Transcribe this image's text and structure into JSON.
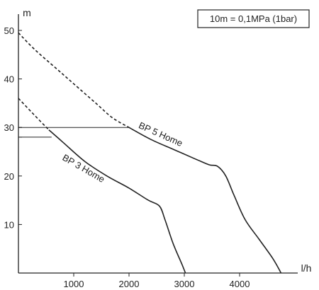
{
  "chart_data": {
    "type": "line",
    "title": "",
    "xlabel": "l/h",
    "ylabel": "m",
    "xlim": [
      0,
      5000
    ],
    "ylim": [
      0,
      50
    ],
    "xticks": [
      1000,
      2000,
      3000,
      4000
    ],
    "xtick_labels": [
      "1000",
      "2000",
      "3000",
      "4000"
    ],
    "yticks": [
      10,
      20,
      30,
      40,
      50
    ],
    "ytick_labels": [
      "10",
      "20",
      "30",
      "40",
      "50"
    ],
    "grid": false,
    "legend": "none",
    "annotation": "10m = 0,1MPa (1bar)",
    "line_color": "#222222",
    "series": [
      {
        "name": "BP 5 Home",
        "label_at": [
          2550,
          28
        ],
        "label_angle": 24,
        "dashed_points": [
          [
            0,
            49.5
          ],
          [
            300,
            46
          ],
          [
            700,
            42
          ],
          [
            1000,
            39
          ],
          [
            1400,
            35
          ],
          [
            1700,
            32
          ],
          [
            2000,
            30
          ]
        ],
        "solid_points": [
          [
            2000,
            30
          ],
          [
            2400,
            27.5
          ],
          [
            2800,
            25.5
          ],
          [
            3200,
            23.5
          ],
          [
            3450,
            22.3
          ],
          [
            3600,
            22
          ],
          [
            3750,
            20
          ],
          [
            3900,
            16
          ],
          [
            4100,
            11
          ],
          [
            4350,
            7
          ],
          [
            4600,
            3
          ],
          [
            4750,
            0
          ]
        ]
      },
      {
        "name": "BP 3 Home",
        "label_at": [
          1150,
          21
        ],
        "label_angle": 30,
        "dashed_points": [
          [
            0,
            36
          ],
          [
            250,
            33
          ],
          [
            550,
            29.5
          ]
        ],
        "solid_points": [
          [
            550,
            29.5
          ],
          [
            800,
            27
          ],
          [
            1200,
            23
          ],
          [
            1600,
            20
          ],
          [
            2000,
            17.5
          ],
          [
            2350,
            15
          ],
          [
            2550,
            13.8
          ],
          [
            2650,
            11
          ],
          [
            2800,
            6
          ],
          [
            2950,
            2
          ],
          [
            3020,
            0
          ]
        ]
      }
    ],
    "reference_lines": [
      {
        "from": [
          0,
          30
        ],
        "to": [
          2000,
          30
        ]
      },
      {
        "from": [
          0,
          28
        ],
        "to": [
          600,
          28
        ]
      }
    ],
    "reference_ticks": [
      28,
      30
    ]
  }
}
